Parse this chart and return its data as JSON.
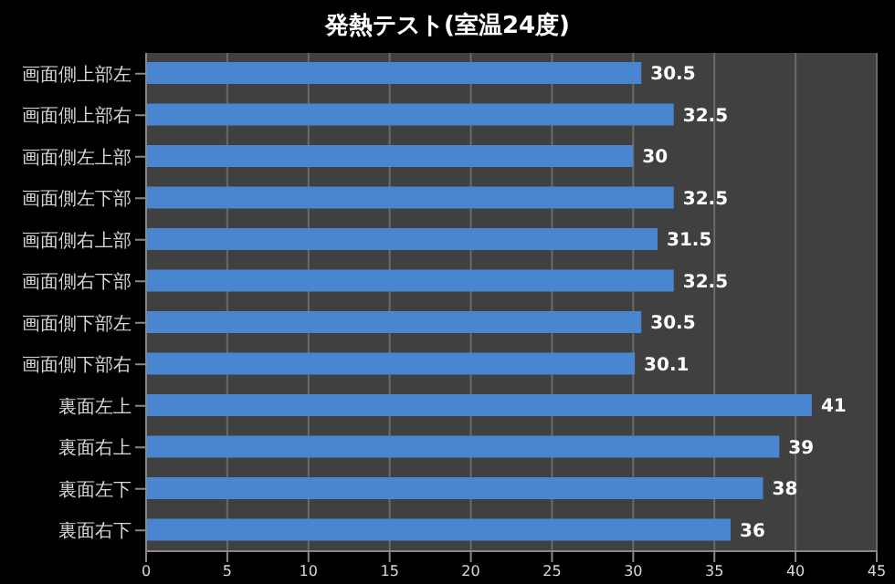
{
  "chart_data": {
    "type": "bar",
    "orientation": "horizontal",
    "title": "発熱テスト(室温24度)",
    "categories": [
      "画面側上部左",
      "画面側上部右",
      "画面側左上部",
      "画面側左下部",
      "画面側右上部",
      "画面側右下部",
      "画面側下部左",
      "画面側下部右",
      "裏面左上",
      "裏面右上",
      "裏面左下",
      "裏面右下"
    ],
    "values": [
      30.5,
      32.5,
      30,
      32.5,
      31.5,
      32.5,
      30.5,
      30.1,
      41,
      39,
      38,
      36
    ],
    "color": "#4a86d0",
    "xlim": [
      0,
      45
    ],
    "xticks": [
      0,
      5,
      10,
      15,
      20,
      25,
      30,
      35,
      40,
      45
    ],
    "grid": "x",
    "data_labels": true
  }
}
